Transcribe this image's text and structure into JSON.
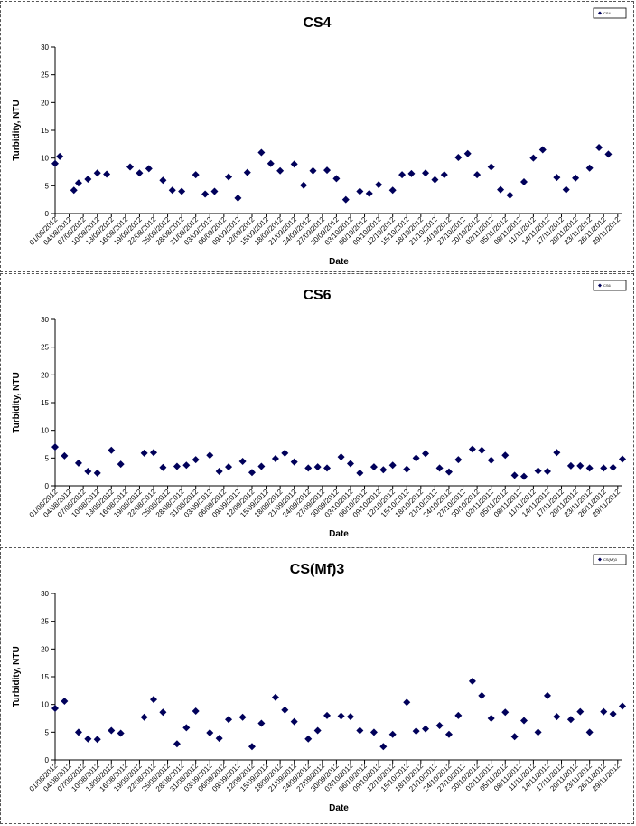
{
  "chart_data": [
    {
      "type": "scatter",
      "title": "CS4",
      "xlabel": "Date",
      "ylabel": "Turbidity, NTU",
      "ylim": [
        0,
        30
      ],
      "yticks": [
        0,
        5,
        10,
        15,
        20,
        25,
        30
      ],
      "xlim": [
        "2012-08-01",
        "2012-11-30"
      ],
      "xticks": [
        "01/08/2012",
        "04/08/2012",
        "07/08/2012",
        "10/08/2012",
        "13/08/2012",
        "16/08/2012",
        "19/08/2012",
        "22/08/2012",
        "25/08/2012",
        "28/08/2012",
        "31/08/2012",
        "03/09/2012",
        "06/09/2012",
        "09/09/2012",
        "12/09/2012",
        "15/09/2012",
        "18/09/2012",
        "21/09/2012",
        "24/09/2012",
        "27/09/2012",
        "30/09/2012",
        "03/10/2012",
        "06/10/2012",
        "09/10/2012",
        "12/10/2012",
        "15/10/2012",
        "18/10/2012",
        "21/10/2012",
        "24/10/2012",
        "27/10/2012",
        "30/10/2012",
        "02/11/2012",
        "05/11/2012",
        "08/11/2012",
        "11/11/2012",
        "14/11/2012",
        "17/11/2012",
        "20/11/2012",
        "23/11/2012",
        "26/11/2012",
        "29/11/2012"
      ],
      "legend": {
        "label": "CS4",
        "position": "top-right"
      },
      "grid": false,
      "marker": "diamond",
      "color": "#00005a",
      "points": [
        [
          "2012-08-01",
          9.0
        ],
        [
          "2012-08-02",
          10.3
        ],
        [
          "2012-08-05",
          4.2
        ],
        [
          "2012-08-06",
          5.5
        ],
        [
          "2012-08-08",
          6.2
        ],
        [
          "2012-08-10",
          7.3
        ],
        [
          "2012-08-12",
          7.1
        ],
        [
          "2012-08-17",
          8.4
        ],
        [
          "2012-08-19",
          7.3
        ],
        [
          "2012-08-21",
          8.1
        ],
        [
          "2012-08-24",
          6.0
        ],
        [
          "2012-08-26",
          4.2
        ],
        [
          "2012-08-28",
          4.0
        ],
        [
          "2012-08-31",
          7.0
        ],
        [
          "2012-09-02",
          3.5
        ],
        [
          "2012-09-04",
          4.0
        ],
        [
          "2012-09-07",
          6.6
        ],
        [
          "2012-09-09",
          2.8
        ],
        [
          "2012-09-11",
          7.4
        ],
        [
          "2012-09-14",
          11.0
        ],
        [
          "2012-09-16",
          9.0
        ],
        [
          "2012-09-18",
          7.7
        ],
        [
          "2012-09-21",
          8.9
        ],
        [
          "2012-09-23",
          5.1
        ],
        [
          "2012-09-25",
          7.7
        ],
        [
          "2012-09-28",
          7.8
        ],
        [
          "2012-09-30",
          6.3
        ],
        [
          "2012-10-02",
          2.5
        ],
        [
          "2012-10-05",
          4.0
        ],
        [
          "2012-10-07",
          3.6
        ],
        [
          "2012-10-09",
          5.2
        ],
        [
          "2012-10-12",
          4.2
        ],
        [
          "2012-10-14",
          7.0
        ],
        [
          "2012-10-16",
          7.2
        ],
        [
          "2012-10-19",
          7.3
        ],
        [
          "2012-10-21",
          6.1
        ],
        [
          "2012-10-23",
          7.0
        ],
        [
          "2012-10-26",
          10.1
        ],
        [
          "2012-10-28",
          10.8
        ],
        [
          "2012-10-30",
          7.0
        ],
        [
          "2012-11-02",
          8.4
        ],
        [
          "2012-11-04",
          4.3
        ],
        [
          "2012-11-06",
          3.3
        ],
        [
          "2012-11-09",
          5.7
        ],
        [
          "2012-11-11",
          10.0
        ],
        [
          "2012-11-13",
          11.5
        ],
        [
          "2012-11-16",
          6.5
        ],
        [
          "2012-11-18",
          4.3
        ],
        [
          "2012-11-20",
          6.4
        ],
        [
          "2012-11-23",
          8.2
        ],
        [
          "2012-11-25",
          11.9
        ],
        [
          "2012-11-27",
          10.7
        ]
      ]
    },
    {
      "type": "scatter",
      "title": "CS6",
      "xlabel": "Date",
      "ylabel": "Turbidity, NTU",
      "ylim": [
        0,
        30
      ],
      "yticks": [
        0,
        5,
        10,
        15,
        20,
        25,
        30
      ],
      "xlim": [
        "2012-08-01",
        "2012-11-30"
      ],
      "xticks": [
        "01/08/2012",
        "04/08/2012",
        "07/08/2012",
        "10/08/2012",
        "13/08/2012",
        "16/08/2012",
        "19/08/2012",
        "22/08/2012",
        "25/08/2012",
        "28/08/2012",
        "31/08/2012",
        "03/09/2012",
        "06/09/2012",
        "09/09/2012",
        "12/09/2012",
        "15/09/2012",
        "18/09/2012",
        "21/09/2012",
        "24/09/2012",
        "27/09/2012",
        "30/09/2012",
        "03/10/2012",
        "06/10/2012",
        "09/10/2012",
        "12/10/2012",
        "15/10/2012",
        "18/10/2012",
        "21/10/2012",
        "24/10/2012",
        "27/10/2012",
        "30/10/2012",
        "02/11/2012",
        "05/11/2012",
        "08/11/2012",
        "11/11/2012",
        "14/11/2012",
        "17/11/2012",
        "20/11/2012",
        "23/11/2012",
        "26/11/2012",
        "29/11/2012"
      ],
      "legend": {
        "label": "CS6",
        "position": "top-right"
      },
      "grid": false,
      "marker": "diamond",
      "color": "#00005a",
      "points": [
        [
          "2012-08-01",
          7.0
        ],
        [
          "2012-08-03",
          5.4
        ],
        [
          "2012-08-06",
          4.1
        ],
        [
          "2012-08-08",
          2.6
        ],
        [
          "2012-08-10",
          2.3
        ],
        [
          "2012-08-13",
          6.4
        ],
        [
          "2012-08-15",
          3.9
        ],
        [
          "2012-08-20",
          5.9
        ],
        [
          "2012-08-22",
          6.0
        ],
        [
          "2012-08-24",
          3.3
        ],
        [
          "2012-08-27",
          3.5
        ],
        [
          "2012-08-29",
          3.7
        ],
        [
          "2012-08-31",
          4.7
        ],
        [
          "2012-09-03",
          5.5
        ],
        [
          "2012-09-05",
          2.6
        ],
        [
          "2012-09-07",
          3.4
        ],
        [
          "2012-09-10",
          4.4
        ],
        [
          "2012-09-12",
          2.4
        ],
        [
          "2012-09-14",
          3.5
        ],
        [
          "2012-09-17",
          4.9
        ],
        [
          "2012-09-19",
          5.9
        ],
        [
          "2012-09-21",
          4.3
        ],
        [
          "2012-09-24",
          3.2
        ],
        [
          "2012-09-26",
          3.4
        ],
        [
          "2012-09-28",
          3.2
        ],
        [
          "2012-10-01",
          5.2
        ],
        [
          "2012-10-03",
          4.0
        ],
        [
          "2012-10-05",
          2.3
        ],
        [
          "2012-10-08",
          3.4
        ],
        [
          "2012-10-10",
          2.9
        ],
        [
          "2012-10-12",
          3.7
        ],
        [
          "2012-10-15",
          3.0
        ],
        [
          "2012-10-17",
          5.0
        ],
        [
          "2012-10-19",
          5.8
        ],
        [
          "2012-10-22",
          3.2
        ],
        [
          "2012-10-24",
          2.5
        ],
        [
          "2012-10-26",
          4.7
        ],
        [
          "2012-10-29",
          6.6
        ],
        [
          "2012-10-31",
          6.4
        ],
        [
          "2012-11-02",
          4.6
        ],
        [
          "2012-11-05",
          5.5
        ],
        [
          "2012-11-07",
          1.9
        ],
        [
          "2012-11-09",
          1.7
        ],
        [
          "2012-11-12",
          2.7
        ],
        [
          "2012-11-14",
          2.6
        ],
        [
          "2012-11-16",
          6.0
        ],
        [
          "2012-11-19",
          3.6
        ],
        [
          "2012-11-21",
          3.6
        ],
        [
          "2012-11-23",
          3.2
        ],
        [
          "2012-11-26",
          3.2
        ],
        [
          "2012-11-28",
          3.3
        ],
        [
          "2012-11-30",
          4.8
        ]
      ]
    },
    {
      "type": "scatter",
      "title": "CS(Mf)3",
      "xlabel": "Date",
      "ylabel": "Turbidity, NTU",
      "ylim": [
        0,
        30
      ],
      "yticks": [
        0,
        5,
        10,
        15,
        20,
        25,
        30
      ],
      "xlim": [
        "2012-08-01",
        "2012-11-30"
      ],
      "xticks": [
        "01/08/2012",
        "04/08/2012",
        "07/08/2012",
        "10/08/2012",
        "13/08/2012",
        "16/08/2012",
        "19/08/2012",
        "22/08/2012",
        "25/08/2012",
        "28/08/2012",
        "31/08/2012",
        "03/09/2012",
        "06/09/2012",
        "09/09/2012",
        "12/09/2012",
        "15/09/2012",
        "18/09/2012",
        "21/09/2012",
        "24/09/2012",
        "27/09/2012",
        "30/09/2012",
        "03/10/2012",
        "06/10/2012",
        "09/10/2012",
        "12/10/2012",
        "15/10/2012",
        "18/10/2012",
        "21/10/2012",
        "24/10/2012",
        "27/10/2012",
        "30/10/2012",
        "02/11/2012",
        "05/11/2012",
        "08/11/2012",
        "11/11/2012",
        "14/11/2012",
        "17/11/2012",
        "20/11/2012",
        "23/11/2012",
        "26/11/2012",
        "29/11/2012"
      ],
      "legend": {
        "label": "CS(Mf)3",
        "position": "top-right"
      },
      "grid": false,
      "marker": "diamond",
      "color": "#00005a",
      "points": [
        [
          "2012-08-01",
          9.3
        ],
        [
          "2012-08-03",
          10.6
        ],
        [
          "2012-08-06",
          5.0
        ],
        [
          "2012-08-08",
          3.8
        ],
        [
          "2012-08-10",
          3.7
        ],
        [
          "2012-08-13",
          5.3
        ],
        [
          "2012-08-15",
          4.8
        ],
        [
          "2012-08-20",
          7.7
        ],
        [
          "2012-08-22",
          10.9
        ],
        [
          "2012-08-24",
          8.6
        ],
        [
          "2012-08-27",
          2.9
        ],
        [
          "2012-08-29",
          5.8
        ],
        [
          "2012-08-31",
          8.8
        ],
        [
          "2012-09-03",
          4.9
        ],
        [
          "2012-09-05",
          3.9
        ],
        [
          "2012-09-07",
          7.3
        ],
        [
          "2012-09-10",
          7.7
        ],
        [
          "2012-09-12",
          2.4
        ],
        [
          "2012-09-14",
          6.6
        ],
        [
          "2012-09-17",
          11.3
        ],
        [
          "2012-09-19",
          9.0
        ],
        [
          "2012-09-21",
          6.9
        ],
        [
          "2012-09-24",
          3.8
        ],
        [
          "2012-09-26",
          5.3
        ],
        [
          "2012-09-28",
          8.0
        ],
        [
          "2012-10-01",
          7.9
        ],
        [
          "2012-10-03",
          7.8
        ],
        [
          "2012-10-05",
          5.3
        ],
        [
          "2012-10-08",
          5.0
        ],
        [
          "2012-10-10",
          2.4
        ],
        [
          "2012-10-12",
          4.6
        ],
        [
          "2012-10-15",
          10.4
        ],
        [
          "2012-10-17",
          5.2
        ],
        [
          "2012-10-19",
          5.6
        ],
        [
          "2012-10-22",
          6.2
        ],
        [
          "2012-10-24",
          4.6
        ],
        [
          "2012-10-26",
          8.0
        ],
        [
          "2012-10-29",
          14.2
        ],
        [
          "2012-10-31",
          11.6
        ],
        [
          "2012-11-02",
          7.5
        ],
        [
          "2012-11-05",
          8.6
        ],
        [
          "2012-11-07",
          4.2
        ],
        [
          "2012-11-09",
          7.1
        ],
        [
          "2012-11-12",
          5.0
        ],
        [
          "2012-11-14",
          11.6
        ],
        [
          "2012-11-16",
          7.8
        ],
        [
          "2012-11-19",
          7.3
        ],
        [
          "2012-11-21",
          8.7
        ],
        [
          "2012-11-23",
          5.0
        ],
        [
          "2012-11-26",
          8.7
        ],
        [
          "2012-11-28",
          8.3
        ],
        [
          "2012-11-30",
          9.7
        ]
      ]
    }
  ]
}
